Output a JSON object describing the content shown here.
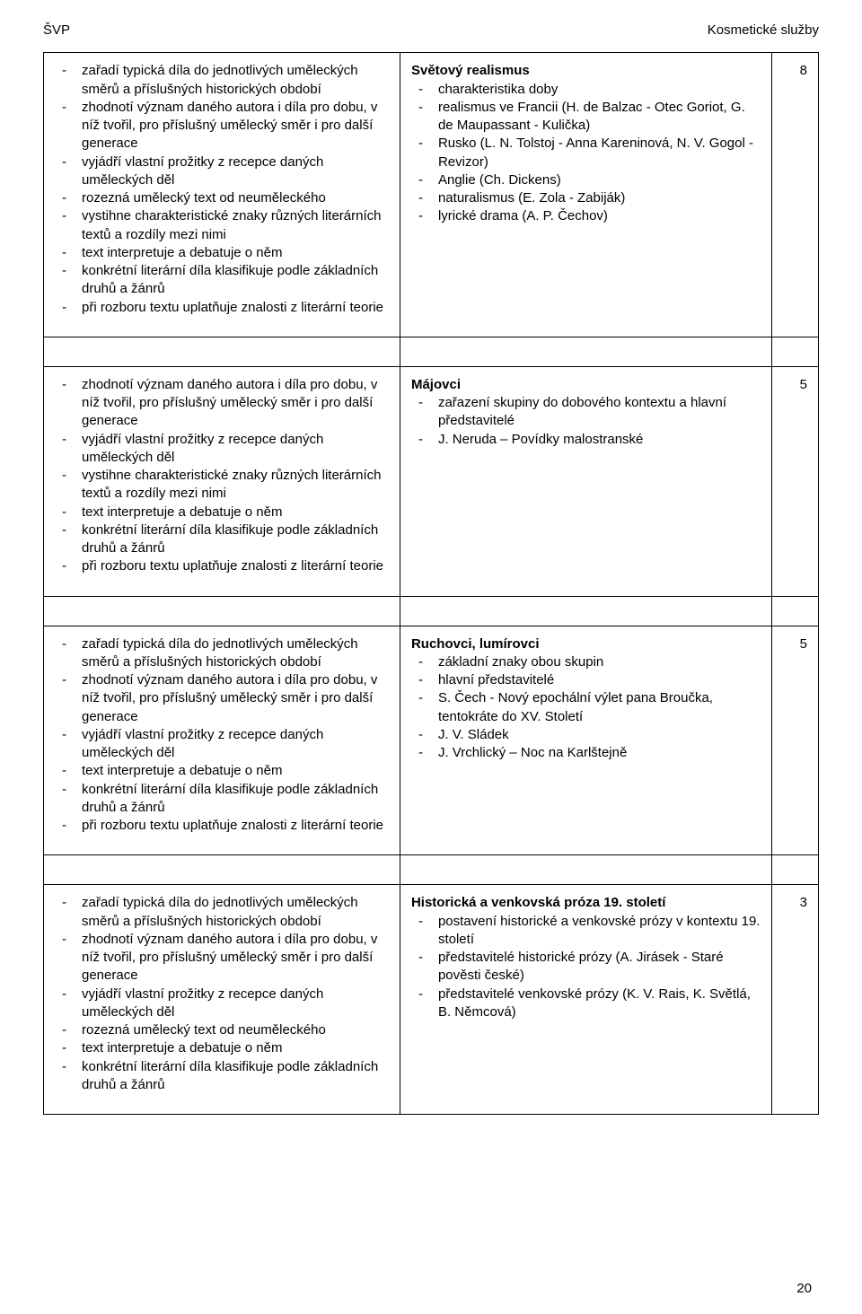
{
  "header": {
    "left": "ŠVP",
    "right": "Kosmetické služby"
  },
  "page_number": "20",
  "colors": {
    "text": "#000000",
    "background": "#ffffff",
    "border": "#000000"
  },
  "rows": [
    {
      "left_items": [
        "zařadí typická díla do jednotlivých uměleckých směrů a příslušných historických období",
        "zhodnotí význam daného autora i díla pro dobu, v níž tvořil, pro příslušný umělecký směr i pro další generace",
        "vyjádří vlastní prožitky z recepce daných uměleckých děl",
        "rozezná umělecký text od neuměleckého",
        "vystihne charakteristické znaky různých literárních textů a rozdíly mezi nimi",
        "text interpretuje a debatuje o něm",
        "konkrétní literární díla klasifikuje podle základních druhů a žánrů",
        "při rozboru textu uplatňuje znalosti z literární teorie"
      ],
      "topic_title": "Světový realismus",
      "topic_items": [
        "charakteristika doby",
        "realismus ve Francii (H. de Balzac - Otec Goriot, G. de Maupassant - Kulička)",
        "Rusko (L. N. Tolstoj - Anna Kareninová, N. V. Gogol - Revizor)",
        "Anglie (Ch. Dickens)",
        "naturalismus (E. Zola - Zabiják)",
        "lyrické drama  (A. P. Čechov)"
      ],
      "hours": "8"
    },
    {
      "left_items": [
        "zhodnotí význam daného autora i díla pro dobu, v níž tvořil, pro příslušný umělecký směr i pro další generace",
        "vyjádří vlastní prožitky z recepce daných uměleckých děl",
        "vystihne charakteristické znaky různých literárních textů a rozdíly mezi nimi",
        "text interpretuje a debatuje o něm",
        "konkrétní literární díla klasifikuje podle základních druhů a žánrů",
        "při rozboru textu uplatňuje znalosti z literární teorie"
      ],
      "topic_title": "Májovci",
      "topic_items": [
        "zařazení skupiny do dobového kontextu a hlavní představitelé",
        "J. Neruda – Povídky malostranské"
      ],
      "hours": "5"
    },
    {
      "left_items": [
        "zařadí typická díla do jednotlivých uměleckých směrů a příslušných historických období",
        "zhodnotí význam daného autora i díla pro dobu, v níž tvořil, pro příslušný umělecký směr i pro další generace",
        "vyjádří vlastní prožitky z recepce daných uměleckých děl",
        "text interpretuje a debatuje o něm",
        "konkrétní literární díla klasifikuje podle základních druhů a žánrů",
        "při rozboru textu uplatňuje znalosti z literární teorie"
      ],
      "topic_title": "Ruchovci, lumírovci",
      "topic_items": [
        "základní znaky obou skupin",
        "hlavní představitelé",
        "S. Čech - Nový epochální výlet pana Broučka, tentokráte do XV. Století",
        "J. V. Sládek",
        "J. Vrchlický – Noc na Karlštejně"
      ],
      "hours": "5"
    },
    {
      "left_items": [
        "zařadí typická díla do jednotlivých uměleckých směrů a příslušných historických období",
        "zhodnotí význam daného autora i díla pro dobu, v níž tvořil, pro příslušný umělecký směr i pro další generace",
        "vyjádří vlastní prožitky z recepce daných uměleckých děl",
        "rozezná umělecký text od neuměleckého",
        "text interpretuje a debatuje o něm",
        "konkrétní literární díla klasifikuje podle základních druhů a žánrů"
      ],
      "topic_title": "Historická a venkovská próza 19. století",
      "topic_items": [
        "postavení historické a venkovské prózy v kontextu 19. století",
        "představitelé historické prózy (A. Jirásek - Staré pověsti české)",
        "představitelé venkovské prózy (K. V. Rais, K. Světlá, B. Němcová)"
      ],
      "hours": "3"
    }
  ]
}
